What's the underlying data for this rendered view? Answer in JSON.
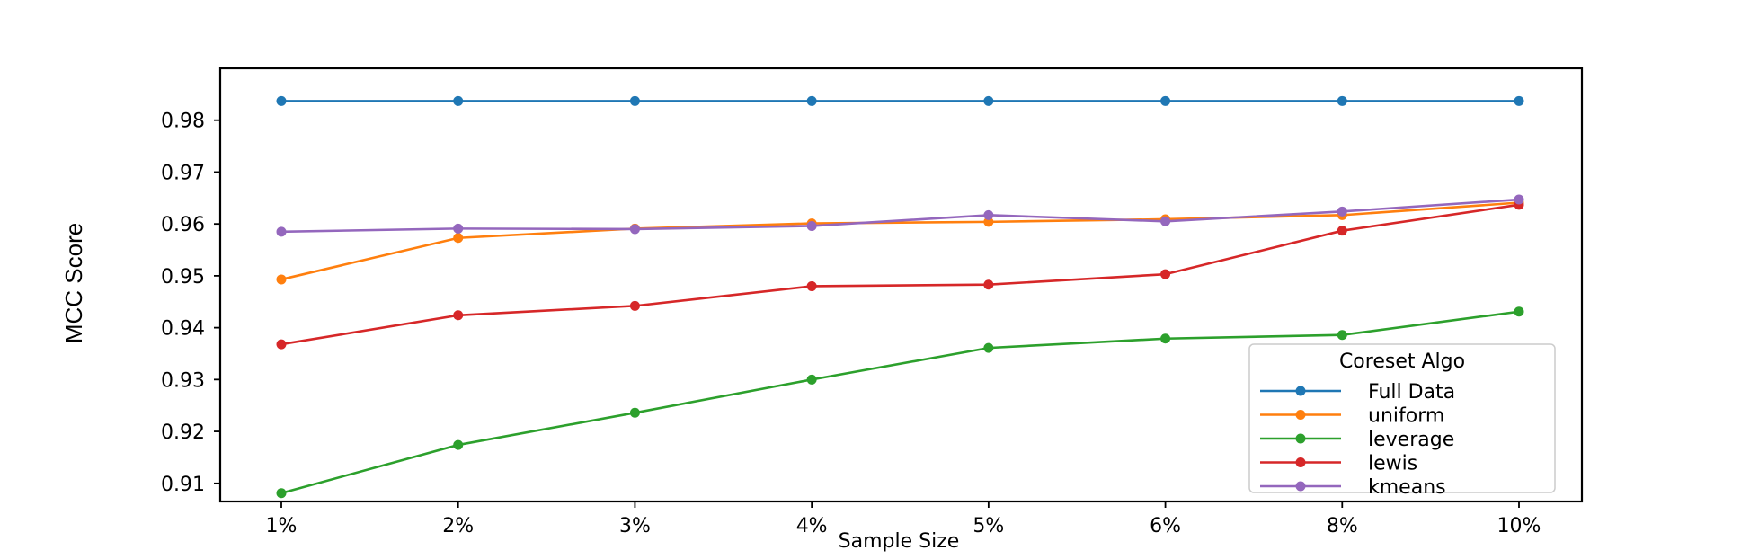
{
  "chart_data": {
    "type": "line",
    "categories": [
      "1%",
      "2%",
      "3%",
      "4%",
      "5%",
      "6%",
      "8%",
      "10%"
    ],
    "xlabel": "Sample Size",
    "ylabel": "MCC Score",
    "ylim": [
      0.9065,
      0.99
    ],
    "yticks": [
      "0.91",
      "0.92",
      "0.93",
      "0.94",
      "0.95",
      "0.96",
      "0.97",
      "0.98"
    ],
    "ytick_values": [
      0.91,
      0.92,
      0.93,
      0.94,
      0.95,
      0.96,
      0.97,
      0.98
    ],
    "grid": false,
    "legend": {
      "title": "Coreset Algo",
      "placement": "lower-right"
    },
    "series": [
      {
        "name": "Full Data",
        "color": "#1f77b4",
        "values": [
          0.9837,
          0.9837,
          0.9837,
          0.9837,
          0.9837,
          0.9837,
          0.9837,
          0.9837
        ]
      },
      {
        "name": "uniform",
        "color": "#ff7f0e",
        "values": [
          0.9493,
          0.9573,
          0.9591,
          0.9601,
          0.9604,
          0.9609,
          0.9617,
          0.9641
        ]
      },
      {
        "name": "leverage",
        "color": "#2ca02c",
        "values": [
          0.9081,
          0.9174,
          0.9236,
          0.93,
          0.9361,
          0.9379,
          0.9386,
          0.9431
        ]
      },
      {
        "name": "lewis",
        "color": "#d62728",
        "values": [
          0.9368,
          0.9424,
          0.9442,
          0.948,
          0.9483,
          0.9503,
          0.9587,
          0.9637
        ]
      },
      {
        "name": "kmeans",
        "color": "#9467bd",
        "values": [
          0.9585,
          0.9591,
          0.959,
          0.9596,
          0.9617,
          0.9605,
          0.9624,
          0.9647
        ]
      }
    ]
  }
}
